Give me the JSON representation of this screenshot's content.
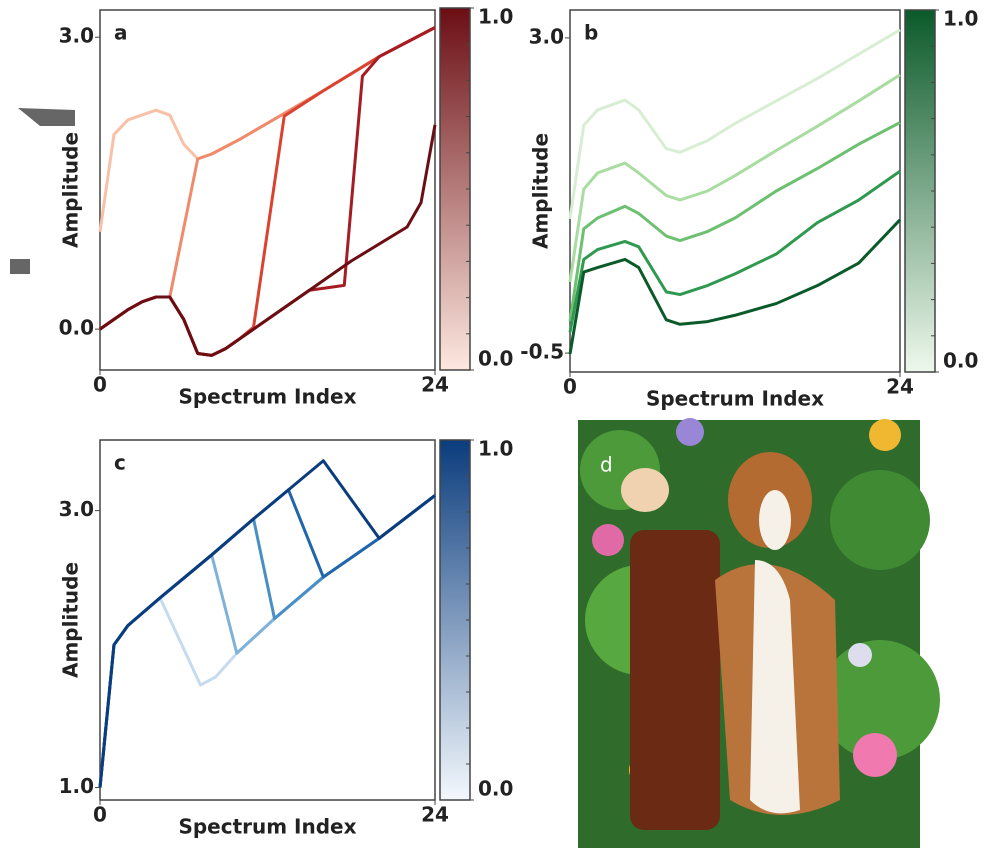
{
  "chart_data": [
    {
      "type": "line",
      "label": "a",
      "xlabel": "Spectrum Index",
      "ylabel": "Amplitude",
      "xlim": [
        0,
        24
      ],
      "xticks": [
        0,
        24
      ],
      "ylim": [
        -0.42,
        3.28
      ],
      "yticks": [
        {
          "value": 0,
          "label": "0.0"
        },
        {
          "value": 3,
          "label": "3.0"
        }
      ],
      "colorbar": {
        "colors": [
          "#fde8e0",
          "#6b0e14"
        ],
        "lim": [
          0,
          1
        ],
        "ticks": [
          {
            "value": 0,
            "label": "0.0"
          },
          {
            "value": 1,
            "label": "1.0"
          }
        ]
      },
      "series": [
        {
          "color": "#f9c0a8",
          "x": [
            0,
            1,
            2,
            3,
            4,
            5,
            6,
            7,
            8,
            10,
            13,
            16,
            20,
            24
          ],
          "values": [
            1.0,
            2.0,
            2.15,
            2.2,
            2.25,
            2.2,
            1.9,
            1.75,
            1.8,
            1.95,
            2.2,
            2.45,
            2.8,
            3.1
          ]
        },
        {
          "color": "#f08a6c",
          "x": [
            0,
            1,
            2,
            3,
            4,
            5,
            7,
            8,
            10,
            13,
            16,
            20,
            24
          ],
          "values": [
            0,
            0.1,
            0.2,
            0.28,
            0.33,
            0.33,
            1.75,
            1.8,
            1.95,
            2.2,
            2.45,
            2.8,
            3.1
          ]
        },
        {
          "color": "#d9432f",
          "x": [
            0,
            1,
            2,
            3,
            4,
            5,
            6,
            7,
            8,
            9,
            10,
            11,
            13.2,
            16,
            20,
            24
          ],
          "values": [
            0,
            0.1,
            0.2,
            0.28,
            0.33,
            0.33,
            0.1,
            -0.25,
            -0.27,
            -0.2,
            -0.1,
            0.02,
            2.19,
            2.45,
            2.8,
            3.1
          ]
        },
        {
          "color": "#a51c22",
          "x": [
            0,
            1,
            2,
            3,
            4,
            5,
            6,
            7,
            8,
            9,
            10,
            12,
            15,
            17.5,
            18.8,
            20,
            24
          ],
          "values": [
            0,
            0.1,
            0.2,
            0.28,
            0.33,
            0.33,
            0.1,
            -0.25,
            -0.27,
            -0.2,
            -0.1,
            0.1,
            0.4,
            0.45,
            2.6,
            2.8,
            3.1
          ]
        },
        {
          "color": "#6b0e14",
          "x": [
            0,
            1,
            2,
            3,
            4,
            5,
            6,
            7,
            8,
            9,
            10,
            12,
            15,
            18,
            22,
            23,
            24
          ],
          "values": [
            0,
            0.1,
            0.2,
            0.28,
            0.33,
            0.33,
            0.1,
            -0.25,
            -0.27,
            -0.2,
            -0.1,
            0.1,
            0.4,
            0.7,
            1.05,
            1.3,
            2.1
          ]
        }
      ]
    },
    {
      "type": "line",
      "label": "b",
      "xlabel": "Spectrum Index",
      "ylabel": "Amplitude",
      "xlim": [
        0,
        24
      ],
      "xticks": [
        0,
        24
      ],
      "ylim": [
        -0.71,
        3.31
      ],
      "yticks": [
        {
          "value": -0.5,
          "label": "-0.5"
        },
        {
          "value": 3,
          "label": "3.0"
        }
      ],
      "colorbar": {
        "colors": [
          "#eef8ec",
          "#0b5a2a"
        ],
        "lim": [
          0,
          1
        ],
        "ticks": [
          {
            "value": 0,
            "label": "0.0"
          },
          {
            "value": 1,
            "label": "1.0"
          }
        ]
      },
      "series": [
        {
          "color": "#d8eed2",
          "x": [
            0,
            1,
            2,
            4,
            5,
            7,
            8,
            10,
            12,
            15,
            18,
            21,
            24
          ],
          "values": [
            0.99,
            2.03,
            2.2,
            2.31,
            2.2,
            1.77,
            1.73,
            1.86,
            2.05,
            2.3,
            2.55,
            2.82,
            3.09
          ]
        },
        {
          "color": "#a8dca0",
          "x": [
            0,
            1,
            2,
            4,
            5,
            7,
            8,
            10,
            12,
            15,
            18,
            21,
            24
          ],
          "values": [
            0.29,
            1.32,
            1.5,
            1.61,
            1.5,
            1.25,
            1.2,
            1.3,
            1.47,
            1.75,
            2.02,
            2.3,
            2.59
          ]
        },
        {
          "color": "#6cc070",
          "x": [
            0,
            1,
            2,
            4,
            5,
            7,
            8,
            10,
            12,
            15,
            18,
            21,
            24
          ],
          "values": [
            -0.15,
            0.88,
            1.0,
            1.13,
            1.05,
            0.8,
            0.75,
            0.85,
            1.0,
            1.3,
            1.55,
            1.82,
            2.06
          ]
        },
        {
          "color": "#2f9950",
          "x": [
            0,
            1,
            2,
            4,
            5,
            7,
            8,
            10,
            12,
            15,
            18,
            21,
            24
          ],
          "values": [
            -0.27,
            0.54,
            0.65,
            0.74,
            0.68,
            0.18,
            0.15,
            0.25,
            0.38,
            0.6,
            0.95,
            1.2,
            1.52
          ]
        },
        {
          "color": "#0b5a2a",
          "x": [
            0,
            1,
            2,
            4,
            5,
            7,
            8,
            10,
            12,
            15,
            18,
            21,
            24
          ],
          "values": [
            -0.51,
            0.4,
            0.45,
            0.54,
            0.45,
            -0.13,
            -0.18,
            -0.15,
            -0.08,
            0.05,
            0.25,
            0.5,
            0.98
          ]
        }
      ]
    },
    {
      "type": "line",
      "label": "c",
      "xlabel": "Spectrum Index",
      "ylabel": "Amplitude",
      "xlim": [
        0,
        24
      ],
      "xticks": [
        0,
        24
      ],
      "ylim": [
        0.91,
        3.51
      ],
      "yticks": [
        {
          "value": 1,
          "label": "1.0"
        },
        {
          "value": 3,
          "label": "3.0"
        }
      ],
      "colorbar": {
        "colors": [
          "#f3f8fd",
          "#0b3c7d"
        ],
        "lim": [
          0,
          1
        ],
        "ticks": [
          {
            "value": 0,
            "label": "0.0"
          },
          {
            "value": 1,
            "label": "1.0"
          }
        ]
      },
      "series": [
        {
          "color": "#c6dbef",
          "x": [
            0,
            1,
            2,
            4.3,
            7.2,
            8.3,
            9.8,
            12.5,
            16,
            20,
            24
          ],
          "values": [
            1.0,
            2.03,
            2.17,
            2.37,
            1.74,
            1.8,
            1.97,
            2.22,
            2.52,
            2.8,
            3.11
          ]
        },
        {
          "color": "#7fb2d9",
          "x": [
            0,
            1,
            2,
            4.3,
            8,
            9.8,
            12.5,
            16,
            20,
            24
          ],
          "values": [
            1.0,
            2.03,
            2.17,
            2.37,
            2.68,
            1.97,
            2.22,
            2.52,
            2.8,
            3.11
          ]
        },
        {
          "color": "#4a8fc4",
          "x": [
            0,
            1,
            2,
            4.3,
            8,
            11,
            12.5,
            16,
            20,
            24
          ],
          "values": [
            1.0,
            2.03,
            2.17,
            2.37,
            2.68,
            2.94,
            2.22,
            2.52,
            2.8,
            3.11
          ]
        },
        {
          "color": "#2166ac",
          "x": [
            0,
            1,
            2,
            4.3,
            8,
            11,
            13.5,
            16,
            20,
            24
          ],
          "values": [
            1.0,
            2.03,
            2.17,
            2.37,
            2.68,
            2.94,
            3.15,
            2.52,
            2.8,
            3.11
          ]
        },
        {
          "color": "#0b3c7d",
          "x": [
            0,
            1,
            2,
            4.3,
            8,
            11,
            13.5,
            16,
            20,
            24
          ],
          "values": [
            1.0,
            2.03,
            2.17,
            2.37,
            2.68,
            2.94,
            3.15,
            3.36,
            2.8,
            3.11
          ]
        }
      ]
    }
  ],
  "image_panel": {
    "label": "d"
  }
}
